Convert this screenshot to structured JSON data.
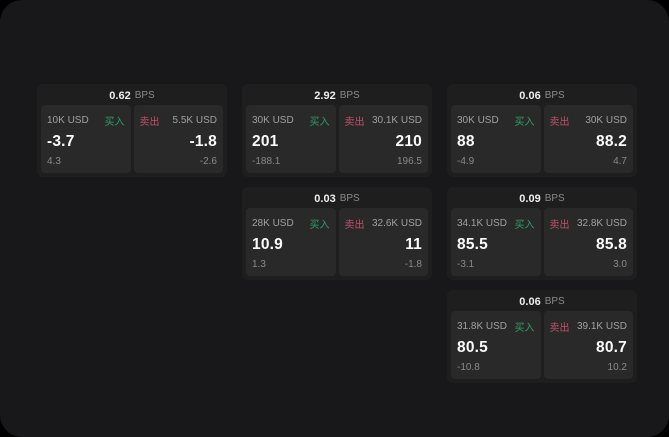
{
  "colors": {
    "outside_bg": "#000000",
    "surface_bg": "#18181a",
    "card_bg": "#1e1e1f",
    "panel_bg": "#29292a",
    "buy_green": "#2f9e68",
    "sell_red": "#c24f6a"
  },
  "bps_unit": "BPS",
  "cards": [
    {
      "row": 0,
      "col": 0,
      "bps": "0.62",
      "buy": {
        "size": "10K USD",
        "tag": "买入",
        "price": "-3.7",
        "delta": "4.3"
      },
      "sell": {
        "tag": "卖出",
        "size": "5.5K USD",
        "price": "-1.8",
        "delta": "-2.6"
      }
    },
    {
      "row": 0,
      "col": 1,
      "bps": "2.92",
      "buy": {
        "size": "30K USD",
        "tag": "买入",
        "price": "201",
        "delta": "-188.1"
      },
      "sell": {
        "tag": "卖出",
        "size": "30.1K USD",
        "price": "210",
        "delta": "196.5"
      }
    },
    {
      "row": 0,
      "col": 2,
      "bps": "0.06",
      "buy": {
        "size": "30K USD",
        "tag": "买入",
        "price": "88",
        "delta": "-4.9"
      },
      "sell": {
        "tag": "卖出",
        "size": "30K USD",
        "price": "88.2",
        "delta": "4.7"
      }
    },
    {
      "row": 1,
      "col": 1,
      "bps": "0.03",
      "buy": {
        "size": "28K USD",
        "tag": "买入",
        "price": "10.9",
        "delta": "1.3"
      },
      "sell": {
        "tag": "卖出",
        "size": "32.6K USD",
        "price": "11",
        "delta": "-1.8"
      }
    },
    {
      "row": 1,
      "col": 2,
      "bps": "0.09",
      "buy": {
        "size": "34.1K USD",
        "tag": "买入",
        "price": "85.5",
        "delta": "-3.1"
      },
      "sell": {
        "tag": "卖出",
        "size": "32.8K USD",
        "price": "85.8",
        "delta": "3.0"
      }
    },
    {
      "row": 2,
      "col": 2,
      "bps": "0.06",
      "buy": {
        "size": "31.8K USD",
        "tag": "买入",
        "price": "80.5",
        "delta": "-10.8"
      },
      "sell": {
        "tag": "卖出",
        "size": "39.1K USD",
        "price": "80.7",
        "delta": "10.2"
      }
    }
  ]
}
